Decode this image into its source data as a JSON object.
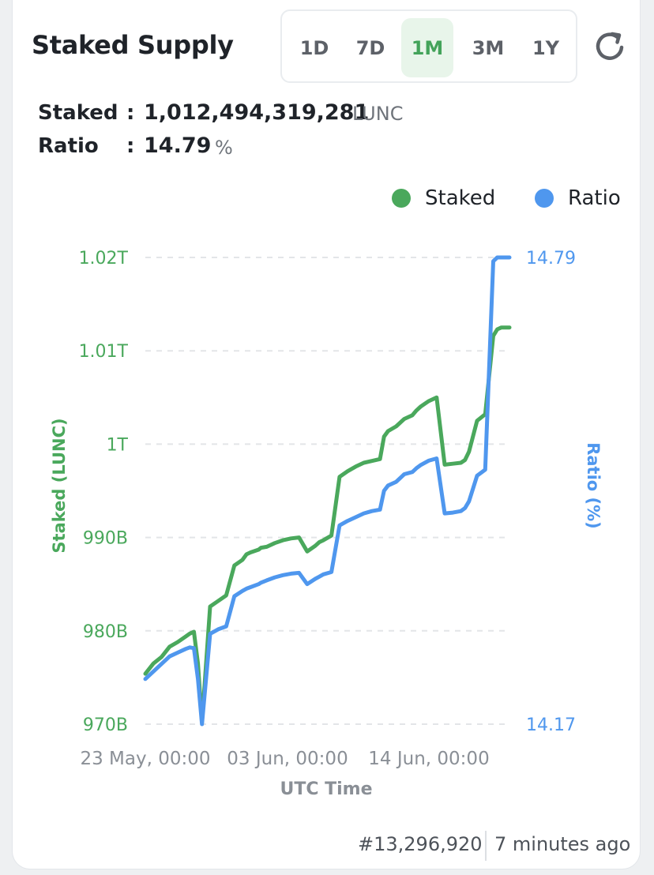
{
  "header": {
    "title": "Staked Supply",
    "ranges": [
      "1D",
      "7D",
      "1M",
      "3M",
      "1Y"
    ],
    "active_range": "1M"
  },
  "stats": {
    "staked_label": "Staked",
    "staked_value": "1,012,494,319,281",
    "staked_unit": "LUNC",
    "ratio_label": "Ratio",
    "ratio_value": "14.79",
    "ratio_unit": "%",
    "colon": ":"
  },
  "legend": {
    "staked": "Staked",
    "ratio": "Ratio"
  },
  "colors": {
    "staked": "#4aa85c",
    "ratio": "#4f97ee",
    "active_range_bg": "#e8f5ea"
  },
  "footer": {
    "block": "#13,296,920",
    "time_ago": "7 minutes ago"
  },
  "chart_data": {
    "type": "line",
    "xlabel": "UTC Time",
    "ylabel": "Staked (LUNC)",
    "y2label": "Ratio (%)",
    "x_tick_labels": [
      "23 May, 00:00",
      "03 Jun, 00:00",
      "14 Jun, 00:00"
    ],
    "y_tick_labels": [
      "970B",
      "980B",
      "990B",
      "1T",
      "1.01T",
      "1.02T"
    ],
    "ylim": [
      970,
      1020
    ],
    "y_unit": "B LUNC",
    "y2_tick_labels": [
      "14.17",
      "14.79"
    ],
    "y2lim": [
      14.17,
      14.79
    ],
    "grid": true,
    "legend_position": "top-right",
    "x_days_since_start": [
      0,
      1,
      2,
      3,
      4,
      5,
      5.5,
      6,
      6.5,
      7,
      8,
      9,
      10,
      11,
      12,
      12.5,
      13,
      14,
      14.3,
      15,
      16,
      17,
      18,
      19,
      20,
      21,
      21.5,
      22,
      23,
      24,
      25,
      26,
      27,
      28,
      29,
      29.5,
      30,
      31,
      32,
      33,
      33.5,
      34,
      35,
      36,
      37,
      38,
      39,
      39.5,
      40,
      41,
      42,
      43,
      43.5,
      44,
      45
    ],
    "series": [
      {
        "name": "Staked",
        "axis": "left",
        "values": [
          975.4,
          976.5,
          977.2,
          978.3,
          978.8,
          979.4,
          979.7,
          979.9,
          976.5,
          970.2,
          982.6,
          983.2,
          983.8,
          987.0,
          987.6,
          988.2,
          988.4,
          988.7,
          988.9,
          989.0,
          989.4,
          989.7,
          989.9,
          990.0,
          988.5,
          989.1,
          989.5,
          989.7,
          990.2,
          996.5,
          997.1,
          997.6,
          998.0,
          998.2,
          998.4,
          1000.8,
          1001.4,
          1001.9,
          1002.7,
          1003.1,
          1003.6,
          1004.0,
          1004.6,
          1005.0,
          997.8,
          997.9,
          998.0,
          998.3,
          999.2,
          1002.5,
          1003.2,
          1011.6,
          1012.3,
          1012.5,
          1012.5
        ],
        "unit": "B"
      },
      {
        "name": "Ratio",
        "axis": "right",
        "values": [
          14.23,
          14.24,
          14.25,
          14.26,
          14.265,
          14.27,
          14.272,
          14.271,
          14.23,
          14.17,
          14.29,
          14.296,
          14.3,
          14.34,
          14.347,
          14.35,
          14.352,
          14.356,
          14.358,
          14.361,
          14.365,
          14.368,
          14.37,
          14.371,
          14.356,
          14.363,
          14.366,
          14.369,
          14.372,
          14.434,
          14.44,
          14.445,
          14.45,
          14.453,
          14.455,
          14.48,
          14.487,
          14.492,
          14.502,
          14.505,
          14.51,
          14.514,
          14.52,
          14.523,
          14.45,
          14.451,
          14.453,
          14.457,
          14.466,
          14.5,
          14.508,
          14.785,
          14.79,
          14.79,
          14.79
        ],
        "unit": "%"
      }
    ]
  }
}
